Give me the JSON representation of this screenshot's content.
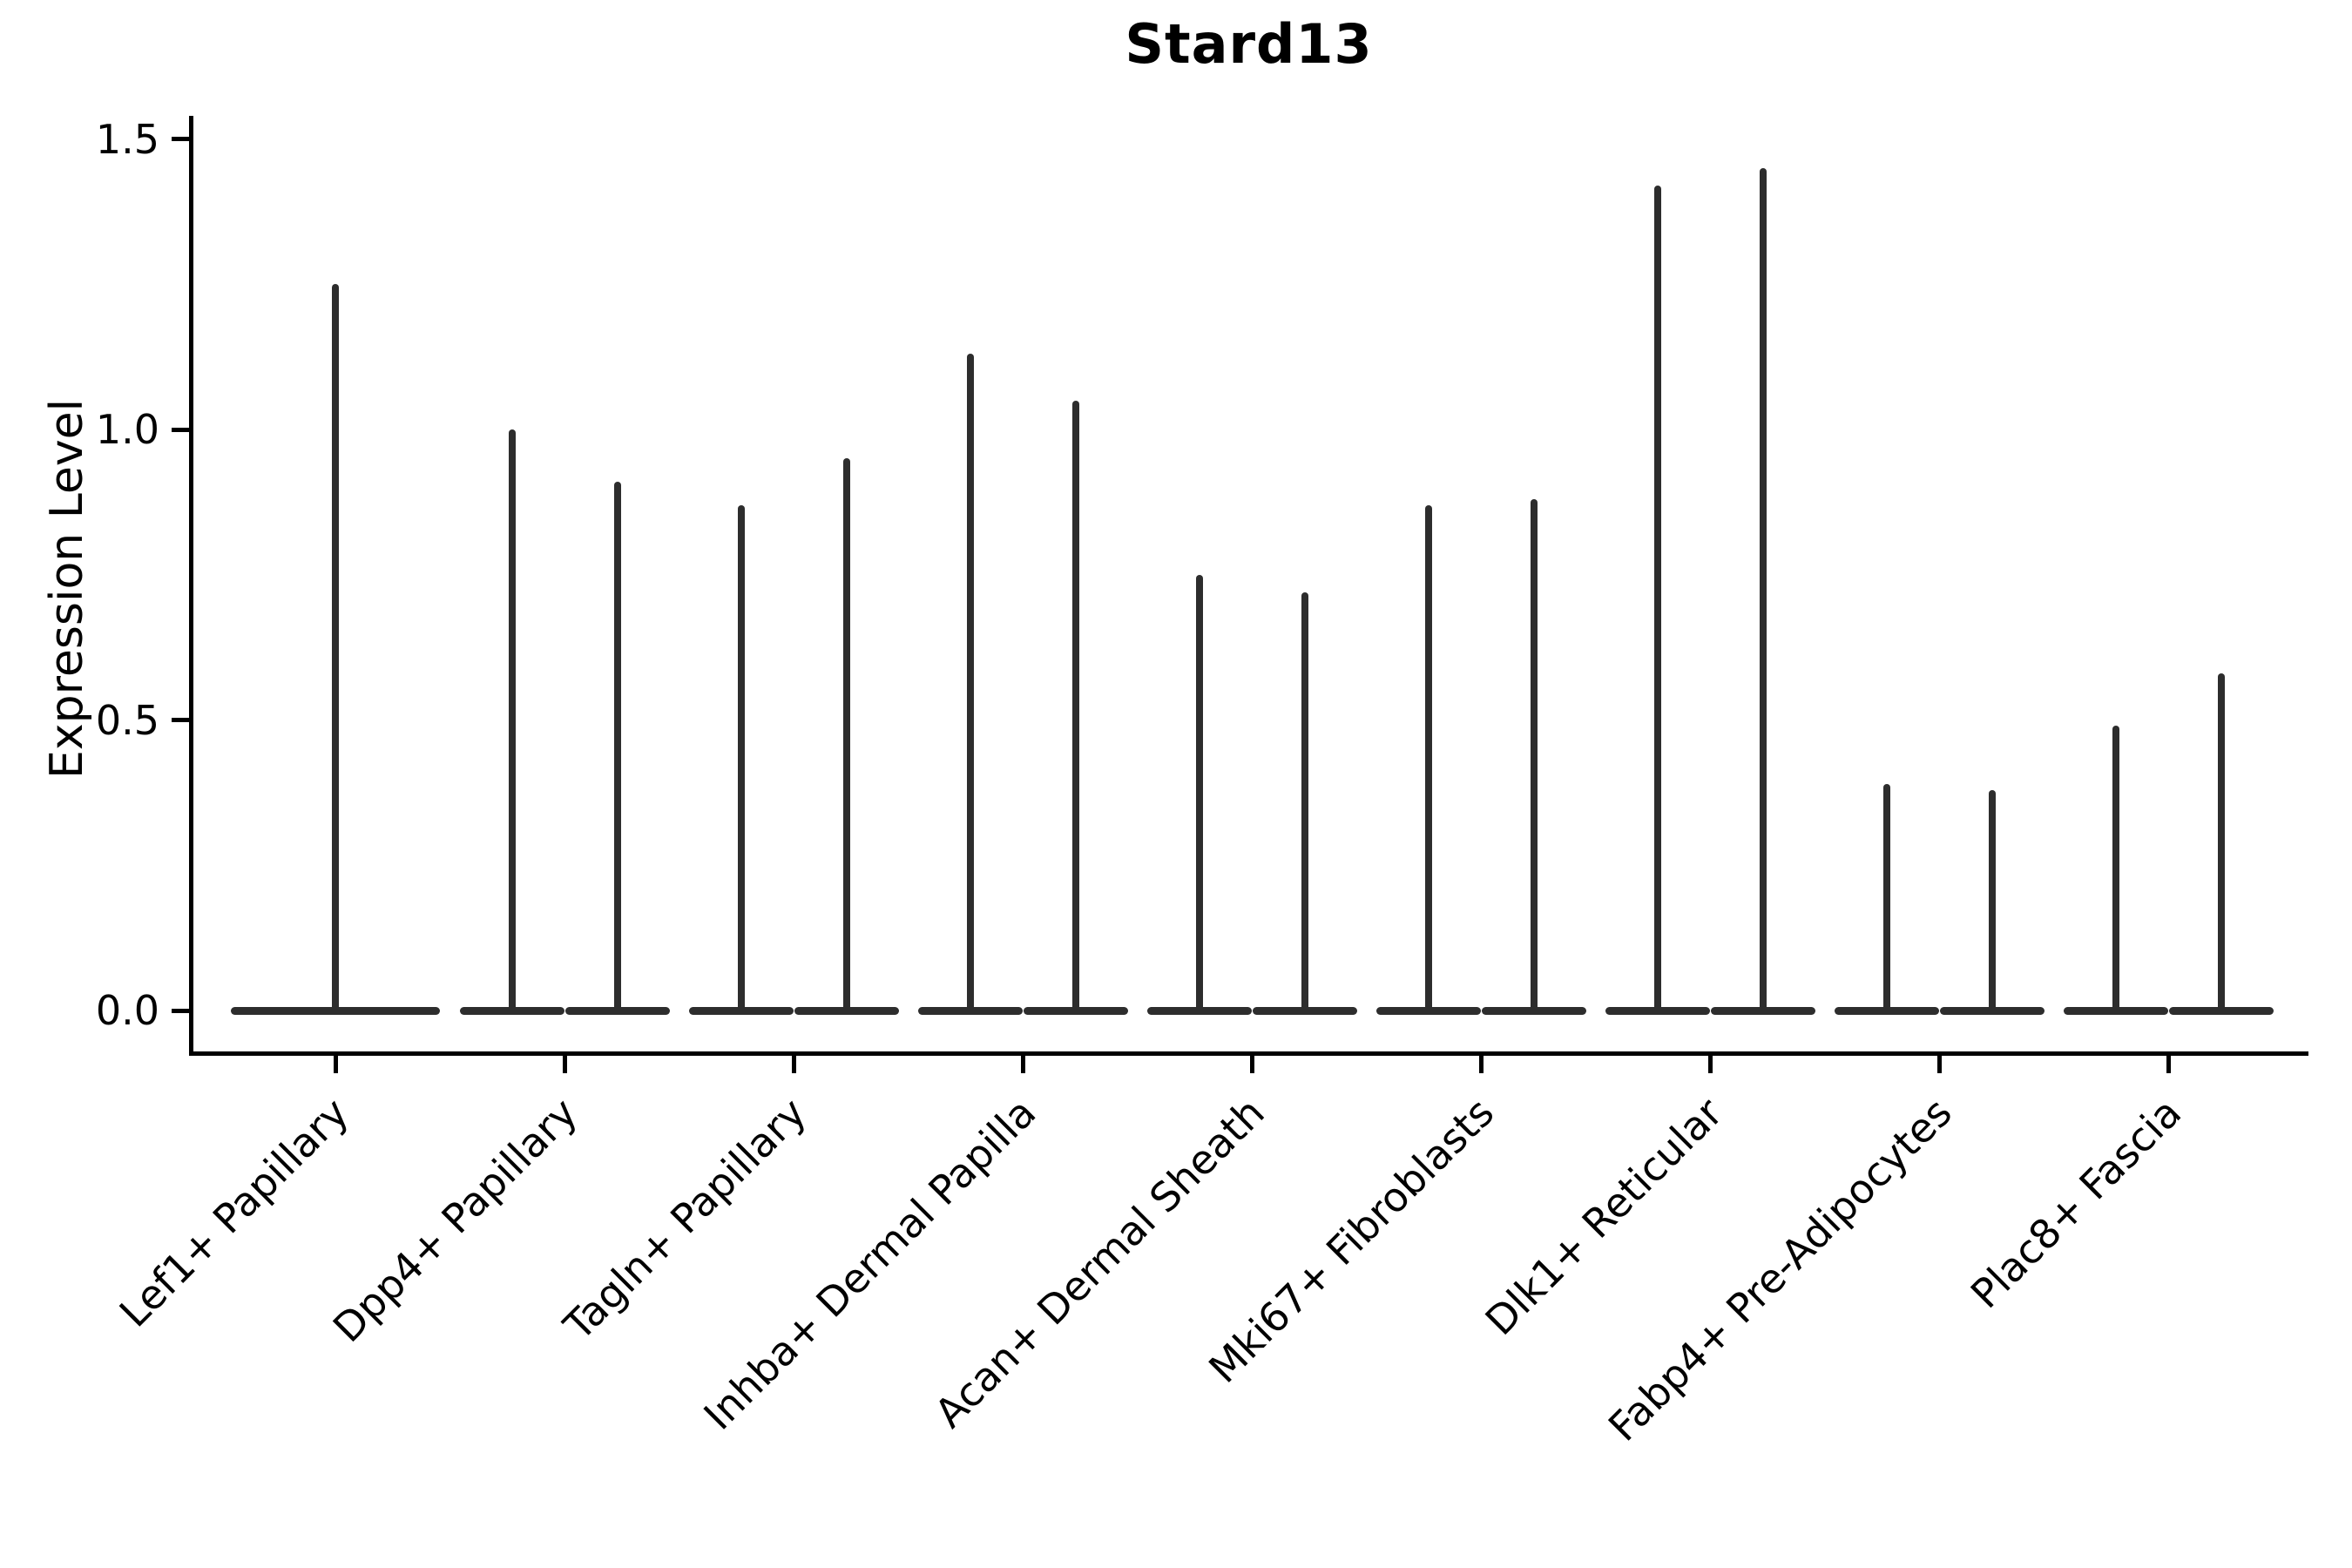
{
  "chart_data": {
    "type": "violin",
    "title": "Stard13",
    "ylabel": "Expression Level",
    "xlabel": "",
    "categories": [
      "Lef1+ Papillary",
      "Dpp4+ Papillary",
      "Tagln+ Papillary",
      "Inhba+ Dermal Papilla",
      "Acan+ Dermal Sheath",
      "Mki67+ Fibroblasts",
      "Dlk1+ Reticular",
      "Fabp4+ Pre-Adipocytes",
      "Plac8+ Fascia"
    ],
    "violins_max_expression": [
      [
        1.25
      ],
      [
        1.0,
        0.91
      ],
      [
        0.87,
        0.95
      ],
      [
        1.13,
        1.05
      ],
      [
        0.75,
        0.72
      ],
      [
        0.87,
        0.88
      ],
      [
        1.42,
        1.45
      ],
      [
        0.39,
        0.38
      ],
      [
        0.49,
        0.58
      ]
    ],
    "min_expression": 0.0,
    "ytick_labels": [
      "0.0",
      "0.5",
      "1.0",
      "1.5"
    ],
    "ytick_values": [
      0.0,
      0.5,
      1.0,
      1.5
    ],
    "ylim": [
      -0.08,
      1.53
    ],
    "grid": false,
    "legend": "none",
    "violin_color": "#2d2d2d",
    "axis_color": "#000000",
    "background_color": "#ffffff",
    "xtick_rotation_degrees": 45
  }
}
